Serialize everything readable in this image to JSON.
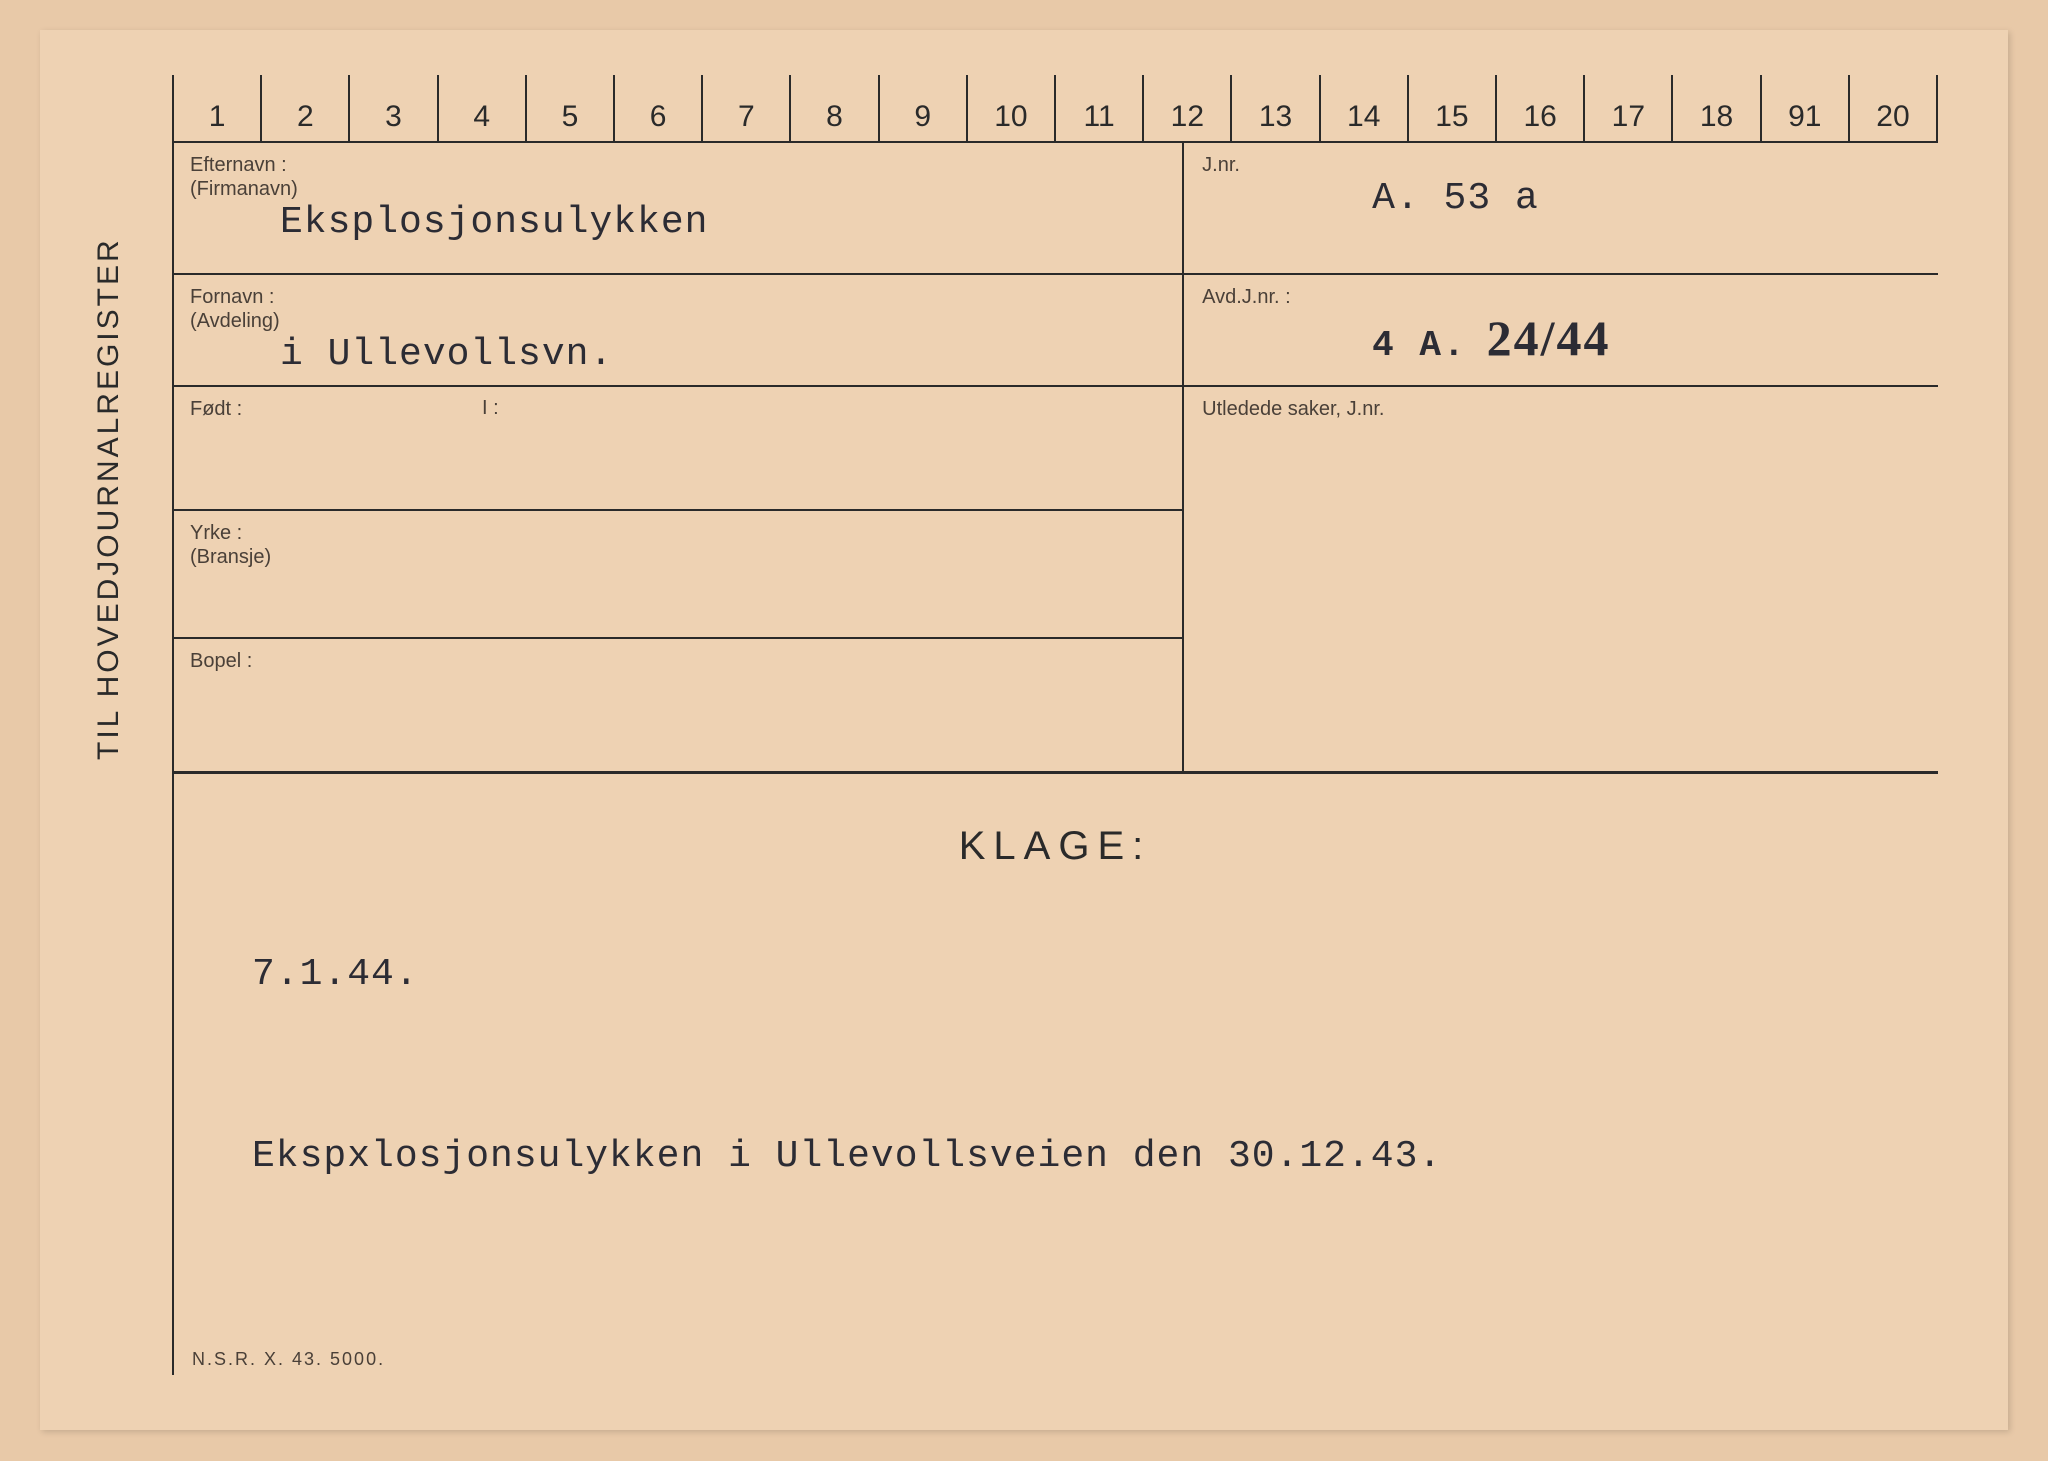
{
  "card": {
    "background_color": "#eed2b3",
    "line_color": "#2a2a2a",
    "side_label": "TIL HOVEDJOURNALREGISTER",
    "ruler_numbers": [
      "1",
      "2",
      "3",
      "4",
      "5",
      "6",
      "7",
      "8",
      "9",
      "10",
      "11",
      "12",
      "13",
      "14",
      "15",
      "16",
      "17",
      "18",
      "91",
      "20"
    ],
    "footer": "N.S.R.  X.  43.   5000."
  },
  "fields": {
    "etternavn": {
      "label1": "Efternavn :",
      "label2": "(Firmanavn)",
      "value": "Eksplosjonsulykken"
    },
    "fornavn": {
      "label1": "Fornavn :",
      "label2": "(Avdeling)",
      "value": "i Ullevollsvn."
    },
    "fodt": {
      "label": "Født :",
      "i_label": "I :",
      "value": ""
    },
    "yrke": {
      "label1": "Yrke :",
      "label2": "(Bransje)",
      "value": ""
    },
    "bopel": {
      "label": "Bopel :",
      "value": ""
    },
    "jnr": {
      "label": "J.nr.",
      "value": "A. 53 a"
    },
    "avdjnr": {
      "label": "Avd.J.nr. :",
      "prefix": "4 A.",
      "value": "24/44"
    },
    "utledede": {
      "label": "Utledede saker, J.nr.",
      "value": ""
    }
  },
  "klage": {
    "title": "KLAGE:",
    "date": "7.1.44.",
    "body": "Ekspxlosjonsulykken i Ullevollsveien den 30.12.43."
  },
  "typography": {
    "label_fontsize": 20,
    "value_fontsize": 38,
    "title_fontsize": 40,
    "side_label_fontsize": 30,
    "typewriter_font": "Courier New",
    "handwritten_font": "Brush Script MT"
  }
}
